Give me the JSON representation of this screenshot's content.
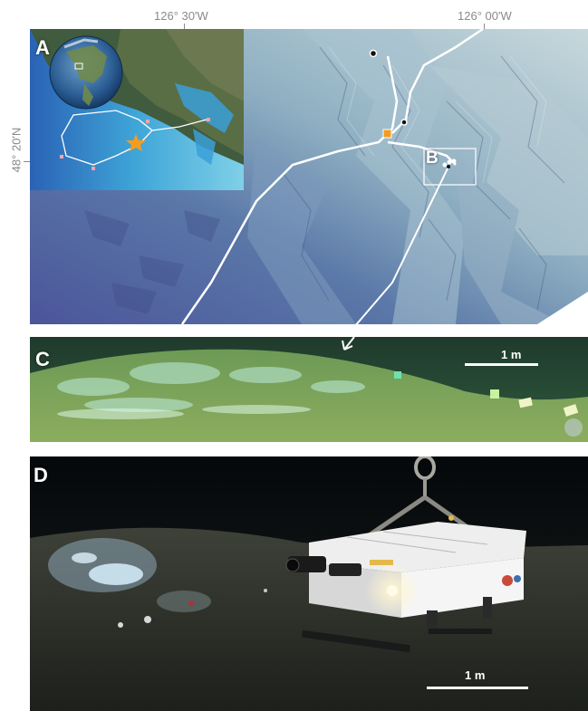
{
  "coords": {
    "lon_left": "126° 30'W",
    "lon_right": "126° 00'W",
    "lat_left": "48° 20'N"
  },
  "panels": {
    "a": {
      "letter": "A"
    },
    "b": {
      "letter": "B"
    },
    "c": {
      "letter": "C",
      "scale_label": "1 m"
    },
    "d": {
      "letter": "D",
      "scale_label": "1 m"
    }
  },
  "colors": {
    "marker_orange": "#f39c1e",
    "seafloor_green": "#5c8a4e",
    "bathymetry_deep": "#4f5fa0",
    "bathymetry_shallow": "#cfdfe4"
  }
}
